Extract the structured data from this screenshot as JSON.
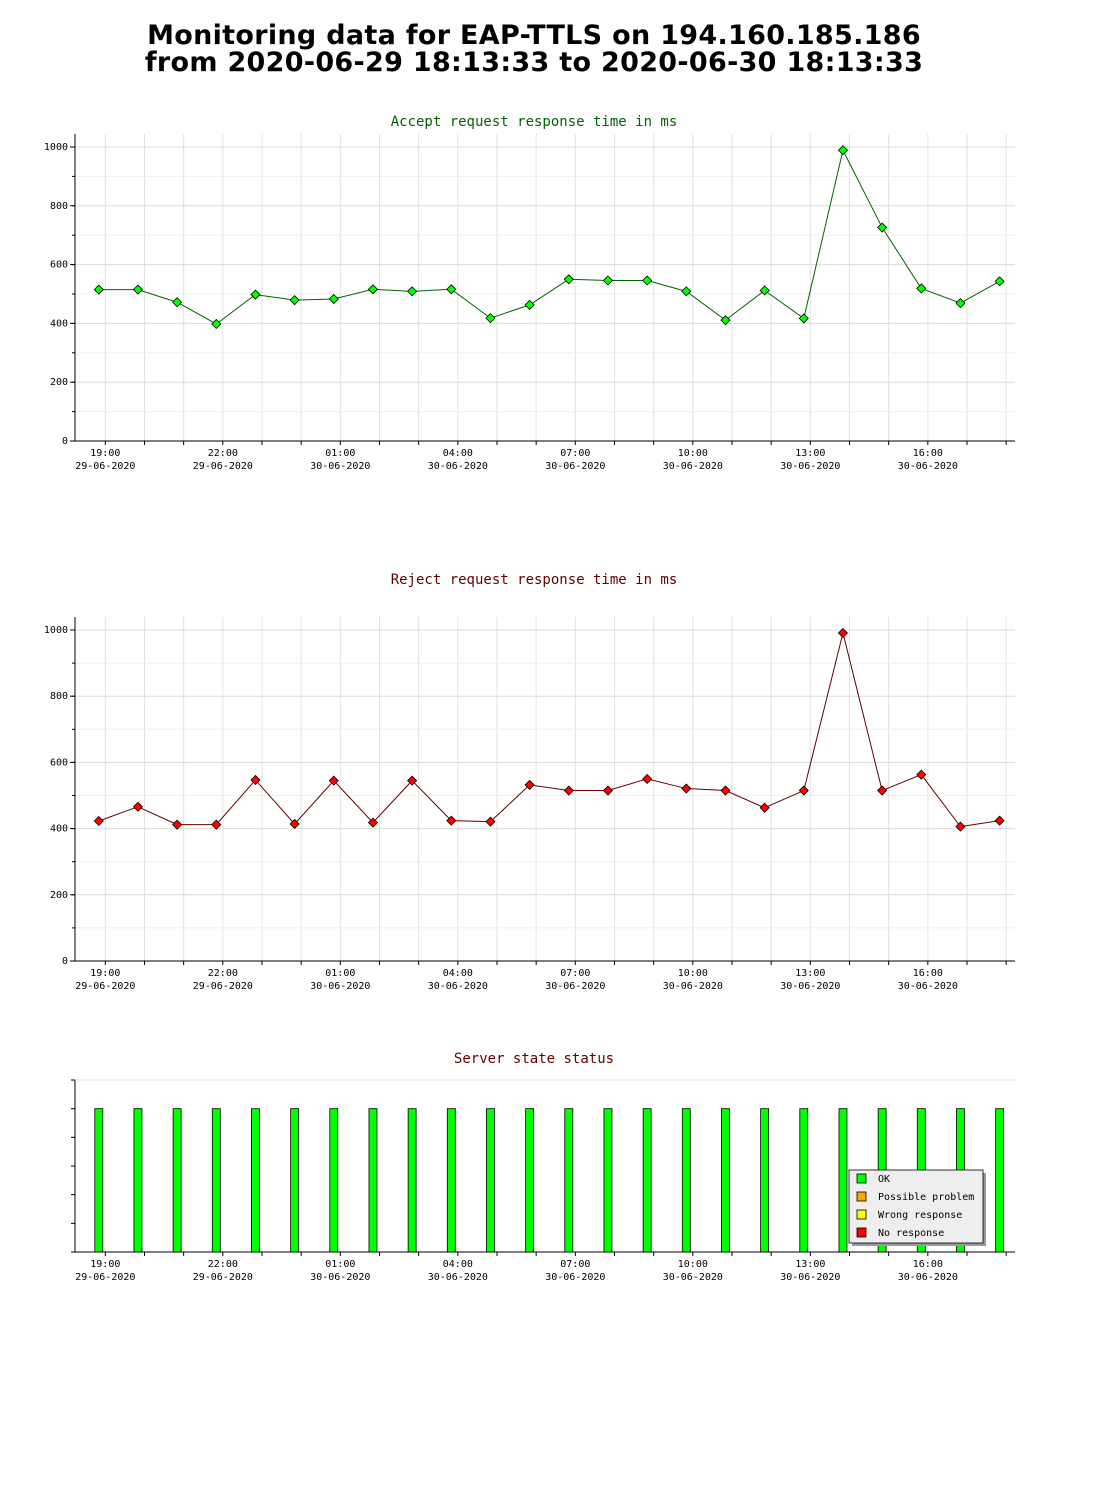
{
  "page": {
    "title_line1": "Monitoring data for EAP-TTLS on 194.160.185.186",
    "title_line2": "from 2020-06-29 18:13:33 to 2020-06-30 18:13:33"
  },
  "x_ticks": [
    {
      "time": "19:00",
      "date": "29-06-2020"
    },
    {
      "time": "22:00",
      "date": "29-06-2020"
    },
    {
      "time": "01:00",
      "date": "30-06-2020"
    },
    {
      "time": "04:00",
      "date": "30-06-2020"
    },
    {
      "time": "07:00",
      "date": "30-06-2020"
    },
    {
      "time": "10:00",
      "date": "30-06-2020"
    },
    {
      "time": "13:00",
      "date": "30-06-2020"
    },
    {
      "time": "16:00",
      "date": "30-06-2020"
    }
  ],
  "chart_data": [
    {
      "type": "line",
      "title": "Accept request response time in ms",
      "title_color": "#006400",
      "series_color": "#00ff00",
      "line_color": "#006400",
      "ylim": [
        0,
        1000
      ],
      "yticks": [
        0,
        200,
        400,
        600,
        800,
        1000
      ],
      "x": [
        "2020-06-29 18:50",
        "2020-06-29 19:50",
        "2020-06-29 20:50",
        "2020-06-29 21:50",
        "2020-06-29 22:50",
        "2020-06-29 23:50",
        "2020-06-30 00:50",
        "2020-06-30 01:50",
        "2020-06-30 02:50",
        "2020-06-30 03:50",
        "2020-06-30 04:50",
        "2020-06-30 05:50",
        "2020-06-30 06:50",
        "2020-06-30 07:50",
        "2020-06-30 08:50",
        "2020-06-30 09:50",
        "2020-06-30 10:50",
        "2020-06-30 11:50",
        "2020-06-30 12:50",
        "2020-06-30 13:50",
        "2020-06-30 14:50",
        "2020-06-30 15:50",
        "2020-06-30 16:50",
        "2020-06-30 17:50"
      ],
      "values": [
        515,
        515,
        472,
        398,
        498,
        479,
        483,
        516,
        509,
        516,
        418,
        463,
        550,
        546,
        546,
        509,
        411,
        512,
        417,
        989,
        726,
        519,
        469,
        543
      ],
      "grid": true
    },
    {
      "type": "line",
      "title": "Reject request response time in ms",
      "title_color": "#640000",
      "series_color": "#ff0000",
      "line_color": "#640000",
      "ylim": [
        0,
        1000
      ],
      "yticks": [
        0,
        200,
        400,
        600,
        800,
        1000
      ],
      "x": [
        "2020-06-29 18:50",
        "2020-06-29 19:50",
        "2020-06-29 20:50",
        "2020-06-29 21:50",
        "2020-06-29 22:50",
        "2020-06-29 23:50",
        "2020-06-30 00:50",
        "2020-06-30 01:50",
        "2020-06-30 02:50",
        "2020-06-30 03:50",
        "2020-06-30 04:50",
        "2020-06-30 05:50",
        "2020-06-30 06:50",
        "2020-06-30 07:50",
        "2020-06-30 08:50",
        "2020-06-30 09:50",
        "2020-06-30 10:50",
        "2020-06-30 11:50",
        "2020-06-30 12:50",
        "2020-06-30 13:50",
        "2020-06-30 14:50",
        "2020-06-30 15:50",
        "2020-06-30 16:50",
        "2020-06-30 17:50"
      ],
      "values": [
        423,
        466,
        412,
        412,
        547,
        414,
        545,
        418,
        545,
        424,
        421,
        532,
        515,
        515,
        550,
        521,
        515,
        463,
        515,
        991,
        515,
        563,
        406,
        424
      ],
      "grid": true
    },
    {
      "type": "bar",
      "title": "Server state status",
      "title_color": "#640000",
      "x": [
        "2020-06-29 18:50",
        "2020-06-29 19:50",
        "2020-06-29 20:50",
        "2020-06-29 21:50",
        "2020-06-29 22:50",
        "2020-06-29 23:50",
        "2020-06-30 00:50",
        "2020-06-30 01:50",
        "2020-06-30 02:50",
        "2020-06-30 03:50",
        "2020-06-30 04:50",
        "2020-06-30 05:50",
        "2020-06-30 06:50",
        "2020-06-30 07:50",
        "2020-06-30 08:50",
        "2020-06-30 09:50",
        "2020-06-30 10:50",
        "2020-06-30 11:50",
        "2020-06-30 12:50",
        "2020-06-30 13:50",
        "2020-06-30 14:50",
        "2020-06-30 15:50",
        "2020-06-30 16:50",
        "2020-06-30 17:50"
      ],
      "states": [
        "OK",
        "OK",
        "OK",
        "OK",
        "OK",
        "OK",
        "OK",
        "OK",
        "OK",
        "OK",
        "OK",
        "OK",
        "OK",
        "OK",
        "OK",
        "OK",
        "OK",
        "OK",
        "OK",
        "OK",
        "OK",
        "OK",
        "OK",
        "OK"
      ],
      "legend_position": "bottom-right",
      "legend": [
        {
          "label": "OK",
          "color": "#00ff00"
        },
        {
          "label": "Possible problem",
          "color": "#ffa500"
        },
        {
          "label": "Wrong response",
          "color": "#ffff00"
        },
        {
          "label": "No response",
          "color": "#ff0000"
        }
      ]
    }
  ]
}
